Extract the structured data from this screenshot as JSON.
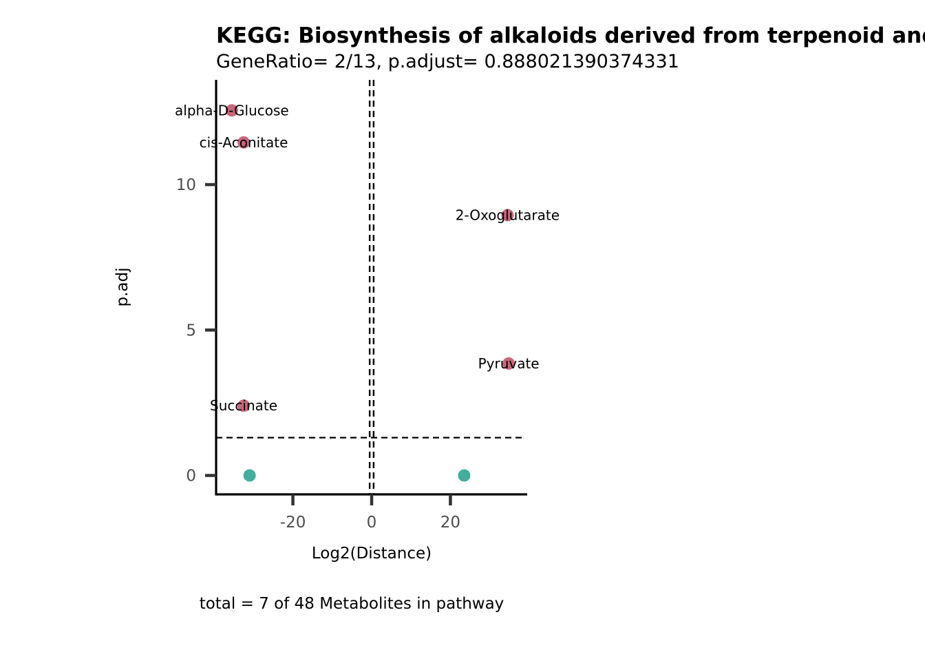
{
  "chart_data": {
    "type": "scatter",
    "title": "KEGG: Biosynthesis of alkaloids derived from terpenoid and polyketide",
    "subtitle": "GeneRatio= 2/13, p.adjust= 0.888021390374331",
    "xlabel": "Log2(Distance)",
    "ylabel": "p.adj",
    "caption": "total = 7 of 48 Metabolites in pathway",
    "xlim": [
      -39.5,
      39.5
    ],
    "ylim": [
      -0.65,
      13.6
    ],
    "x_ticks": [
      -20,
      0,
      20
    ],
    "x_tick_labels": [
      "-20",
      "0",
      "20"
    ],
    "y_ticks": [
      0,
      5,
      10
    ],
    "y_tick_labels": [
      "0",
      "5",
      "10"
    ],
    "reference_lines": {
      "vertical": [
        -0.5,
        0.5
      ],
      "horizontal": 1.3
    },
    "grid": false,
    "colors": {
      "significant": "#c7667a",
      "not_significant": "#45ad9c",
      "axis": "#000000",
      "tick": "#333333"
    },
    "points": [
      {
        "label": "alpha-D-Glucose",
        "x": -35.5,
        "y": 12.55,
        "significant": true
      },
      {
        "label": "cis-Aconitate",
        "x": -32.5,
        "y": 11.45,
        "significant": true
      },
      {
        "label": "2-Oxoglutarate",
        "x": 34.5,
        "y": 8.95,
        "significant": true
      },
      {
        "label": "Pyruvate",
        "x": 34.8,
        "y": 3.85,
        "significant": true
      },
      {
        "label": "Succinate",
        "x": -32.5,
        "y": 2.4,
        "significant": true
      },
      {
        "label": "",
        "x": -31.0,
        "y": 0.0,
        "significant": false
      },
      {
        "label": "",
        "x": 23.5,
        "y": 0.0,
        "significant": false
      }
    ]
  }
}
